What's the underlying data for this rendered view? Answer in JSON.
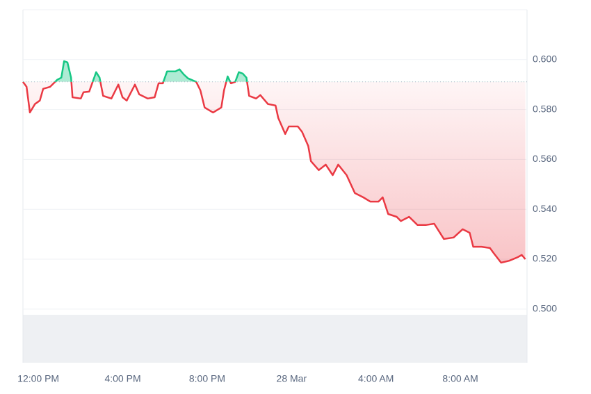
{
  "chart_data": {
    "type": "line",
    "x": [
      -0.73,
      -0.56,
      -0.4,
      -0.16,
      0.07,
      0.23,
      0.56,
      0.89,
      1.09,
      1.22,
      1.38,
      1.55,
      1.62,
      2.01,
      2.14,
      2.41,
      2.74,
      2.9,
      3.07,
      3.46,
      3.79,
      3.99,
      4.19,
      4.58,
      4.78,
      5.18,
      5.51,
      5.7,
      5.9,
      6.1,
      6.5,
      6.69,
      6.89,
      7.09,
      7.48,
      7.68,
      7.88,
      8.28,
      8.67,
      8.8,
      8.97,
      9.13,
      9.33,
      9.5,
      9.69,
      9.86,
      9.99,
      10.32,
      10.52,
      10.88,
      11.24,
      11.37,
      11.7,
      11.87,
      12.3,
      12.5,
      12.79,
      12.92,
      13.29,
      13.62,
      13.95,
      14.21,
      14.61,
      15.0,
      15.4,
      15.73,
      16.12,
      16.32,
      16.58,
      16.98,
      17.18,
      17.57,
      17.97,
      18.36,
      18.76,
      19.22,
      19.68,
      20.11,
      20.44,
      20.61,
      21.0,
      21.4,
      21.6,
      21.93,
      22.32,
      22.72,
      22.91,
      23.08
    ],
    "series": [
      {
        "values": [
          0.5911,
          0.5891,
          0.5788,
          0.5822,
          0.5836,
          0.5883,
          0.5891,
          0.5919,
          0.5928,
          0.5994,
          0.5989,
          0.5928,
          0.5849,
          0.5844,
          0.5869,
          0.5872,
          0.595,
          0.5928,
          0.5855,
          0.5844,
          0.59,
          0.5849,
          0.5836,
          0.59,
          0.5861,
          0.5844,
          0.5849,
          0.5905,
          0.5905,
          0.5953,
          0.5953,
          0.5961,
          0.5941,
          0.5925,
          0.5911,
          0.5877,
          0.5808,
          0.5788,
          0.5808,
          0.5877,
          0.5933,
          0.5905,
          0.5911,
          0.595,
          0.5944,
          0.5928,
          0.5855,
          0.5844,
          0.5858,
          0.5822,
          0.5816,
          0.5766,
          0.5702,
          0.5732,
          0.5732,
          0.571,
          0.5654,
          0.5593,
          0.5557,
          0.5579,
          0.5537,
          0.5579,
          0.5537,
          0.5465,
          0.5448,
          0.5431,
          0.5431,
          0.5448,
          0.5381,
          0.537,
          0.5353,
          0.537,
          0.5337,
          0.5337,
          0.5342,
          0.5281,
          0.5287,
          0.532,
          0.5306,
          0.525,
          0.525,
          0.5245,
          0.5222,
          0.5186,
          0.5194,
          0.5208,
          0.5217,
          0.52
        ]
      }
    ],
    "baseline": 0.5911,
    "up_color": "#16c784",
    "down_color": "#ea3943",
    "xlim": [
      -0.73,
      23.16
    ],
    "xticks": [
      {
        "value": 0,
        "label": "12:00 PM"
      },
      {
        "value": 4,
        "label": "4:00 PM"
      },
      {
        "value": 8,
        "label": "8:00 PM"
      },
      {
        "value": 12,
        "label": "28 Mar"
      },
      {
        "value": 16,
        "label": "4:00 AM"
      },
      {
        "value": 20,
        "label": "8:00 AM"
      }
    ],
    "ylim": [
      0.4785,
      0.62
    ],
    "yticks": [
      {
        "value": 0.5,
        "label": "0.500"
      },
      {
        "value": 0.52,
        "label": "0.520"
      },
      {
        "value": 0.54,
        "label": "0.540"
      },
      {
        "value": 0.56,
        "label": "0.560"
      },
      {
        "value": 0.58,
        "label": "0.580"
      },
      {
        "value": 0.6,
        "label": "0.600"
      }
    ],
    "grid": true
  }
}
